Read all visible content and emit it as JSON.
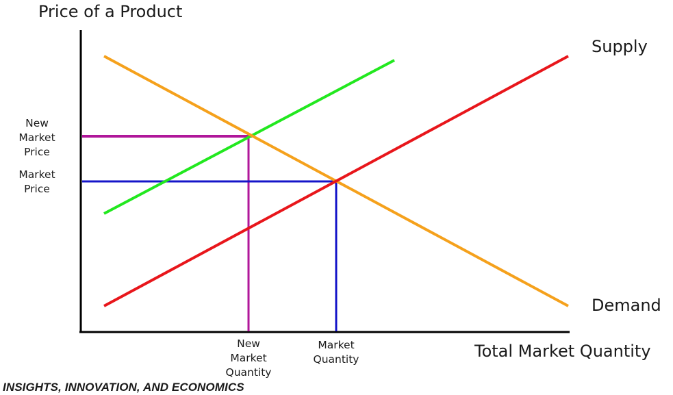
{
  "labels": {
    "y_axis": "Price of a Product",
    "x_axis": "Total Market Quantity",
    "supply": "Supply",
    "demand": "Demand",
    "new_market_price": [
      "New",
      "Market",
      "Price"
    ],
    "market_price": [
      "Market",
      "Price"
    ],
    "new_market_quantity": [
      "New",
      "Market",
      "Quantity"
    ],
    "market_quantity": [
      "Market",
      "Quantity"
    ]
  },
  "footer": "INSIGHTS, INNOVATION, AND ECONOMICS",
  "colors": {
    "axis": "#000000",
    "demand": "#f5a11c",
    "supply": "#e8161b",
    "new_supply": "#22e81f",
    "new_equilibrium": "#b0169a",
    "equilibrium": "#1515c9"
  }
}
